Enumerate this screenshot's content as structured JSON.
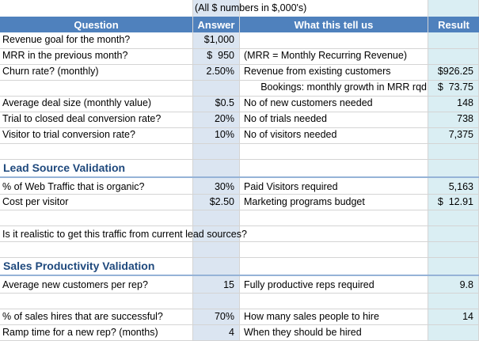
{
  "note": "(All $ numbers in $,000's)",
  "headers": {
    "question": "Question",
    "answer": "Answer",
    "meaning": "What this tell us",
    "result": "Result"
  },
  "rows": [
    {
      "q": "Revenue goal for the month?",
      "a": "$1,000",
      "m": "",
      "r": ""
    },
    {
      "q": "MRR in the previous month?",
      "a": "$  950",
      "m": "(MRR = Monthly Recurring Revenue)",
      "r": ""
    },
    {
      "q": "Churn rate? (monthly)",
      "a": "2.50%",
      "m": "Revenue from existing customers",
      "r": "$926.25"
    },
    {
      "q": "",
      "a": "",
      "m": "Bookings: monthly growth in MRR rqd",
      "r": "$  73.75"
    },
    {
      "q": "Average deal size (monthly value)",
      "a": "$0.5",
      "m": "No of new customers needed",
      "r": "148"
    },
    {
      "q": "Trial to closed deal conversion rate?",
      "a": "20%",
      "m": "No of trials needed",
      "r": "738"
    },
    {
      "q": "Visitor to trial conversion rate?",
      "a": "10%",
      "m": "No of visitors needed",
      "r": "7,375"
    }
  ],
  "lead_source": {
    "title": "Lead Source Validation",
    "rows": [
      {
        "q": "% of Web Traffic that is organic?",
        "a": "30%",
        "m": "Paid Visitors required",
        "r": "5,163"
      },
      {
        "q": "Cost per visitor",
        "a": "$2.50",
        "m": "Marketing programs budget",
        "r": "$  12.91"
      }
    ],
    "question": "Is it realistic to get this traffic from current lead sources?"
  },
  "sales": {
    "title": "Sales Productivity Validation",
    "rows": [
      {
        "q": "Average new customers per rep?",
        "a": "15",
        "m": "Fully productive reps required",
        "r": "9.8"
      },
      {
        "q": "% of sales hires that are successful?",
        "a": "70%",
        "m": "How many sales people to hire",
        "r": "14"
      },
      {
        "q": "Ramp time for a new rep? (months)",
        "a": "4",
        "m": "When they should be hired",
        "r": ""
      }
    ]
  },
  "colors": {
    "header": "#4f81bd",
    "answer_col": "#dbe5f1",
    "result_col": "#daeef3",
    "section_title": "#1f497d"
  }
}
